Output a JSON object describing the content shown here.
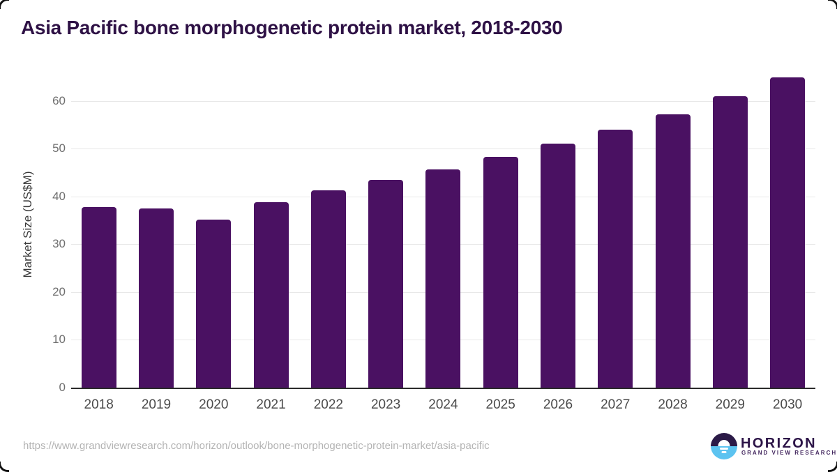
{
  "title": "Asia Pacific bone morphogenetic protein market, 2018-2030",
  "source_url": "https://www.grandviewresearch.com/horizon/outlook/bone-morphogenetic-protein-market/asia-pacific",
  "logo": {
    "name": "HORIZON",
    "subtitle": "GRAND VIEW RESEARCH",
    "icon": "horizon-sunrise-icon"
  },
  "chart_data": {
    "type": "bar",
    "title": "Asia Pacific bone morphogenetic protein market, 2018-2030",
    "categories": [
      "2018",
      "2019",
      "2020",
      "2021",
      "2022",
      "2023",
      "2024",
      "2025",
      "2026",
      "2027",
      "2028",
      "2029",
      "2030"
    ],
    "values": [
      37.8,
      37.5,
      35.2,
      38.8,
      41.3,
      43.4,
      45.7,
      48.3,
      51.0,
      54.0,
      57.1,
      60.9,
      64.9
    ],
    "xlabel": "",
    "ylabel": "Market Size (US$M)",
    "ylim": [
      0,
      65
    ],
    "yticks": [
      0,
      10,
      20,
      30,
      40,
      50,
      60
    ],
    "grid": true,
    "legend": "none",
    "bar_color": "#4a1162"
  },
  "colors": {
    "background": "#ffffff",
    "bar": "#4a1162",
    "title_text": "#2e1145",
    "axis_line": "#2b2b2b",
    "gridline": "#e8e8e8",
    "x_tick_text": "#4b4b4b",
    "y_tick_text": "#6f6f6f",
    "y_axis_title_text": "#3a3a3a",
    "footer_text": "#b3b3b3",
    "logo_purple": "#2b1a47",
    "logo_blue": "#5cc3f0",
    "logo_text": "#2d1548",
    "logo_subtext": "#43275f",
    "corner_marks": "#111111"
  }
}
